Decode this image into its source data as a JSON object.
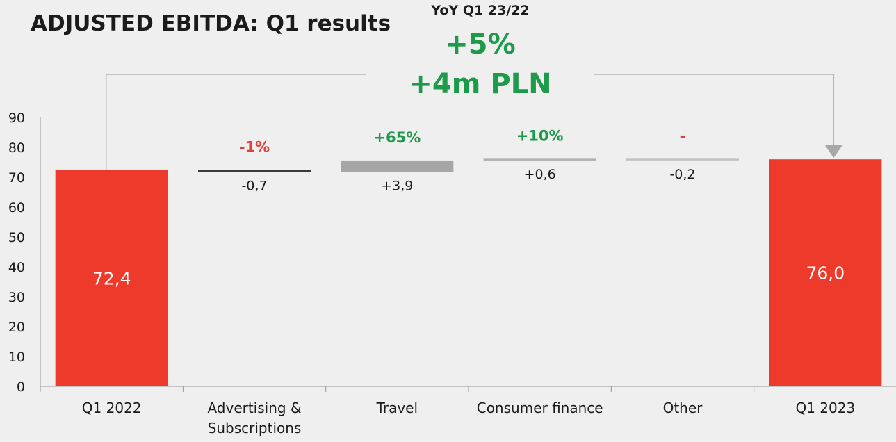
{
  "title": "ADJUSTED EBITDA: Q1 results",
  "yoy": {
    "label": "YoY Q1 23/22",
    "percent": "+5%",
    "amount": "+4m PLN"
  },
  "colors": {
    "total": "#ee3a2b",
    "positive": "#1e9a4b",
    "negative": "#e0403a",
    "connector": "#b5b5b5",
    "axis": "#9a9a9a"
  },
  "chart_data": {
    "type": "bar",
    "subtype": "waterfall",
    "categories": [
      "Q1 2022",
      "Advertising & Subscriptions",
      "Travel",
      "Consumer finance",
      "Other",
      "Q1 2023"
    ],
    "category_lines": [
      [
        "Q1 2022"
      ],
      [
        "Advertising &",
        "Subscriptions"
      ],
      [
        "Travel"
      ],
      [
        "Consumer finance"
      ],
      [
        "Other"
      ],
      [
        "Q1 2023"
      ]
    ],
    "values": [
      72.4,
      -0.7,
      3.9,
      0.6,
      -0.2,
      76.0
    ],
    "kinds": [
      "total",
      "delta",
      "delta",
      "delta",
      "delta",
      "total"
    ],
    "value_labels": [
      "72,4",
      "-0,7",
      "+3,9",
      "+0,6",
      "-0,2",
      "76,0"
    ],
    "change_labels": [
      "",
      "-1%",
      "+65%",
      "+10%",
      "-",
      ""
    ],
    "change_colors": [
      "",
      "negative",
      "positive",
      "positive",
      "negative",
      ""
    ],
    "ylim": [
      0,
      90
    ],
    "yticks": [
      0,
      10,
      20,
      30,
      40,
      50,
      60,
      70,
      80,
      90
    ],
    "grid": false,
    "legend": "none"
  }
}
